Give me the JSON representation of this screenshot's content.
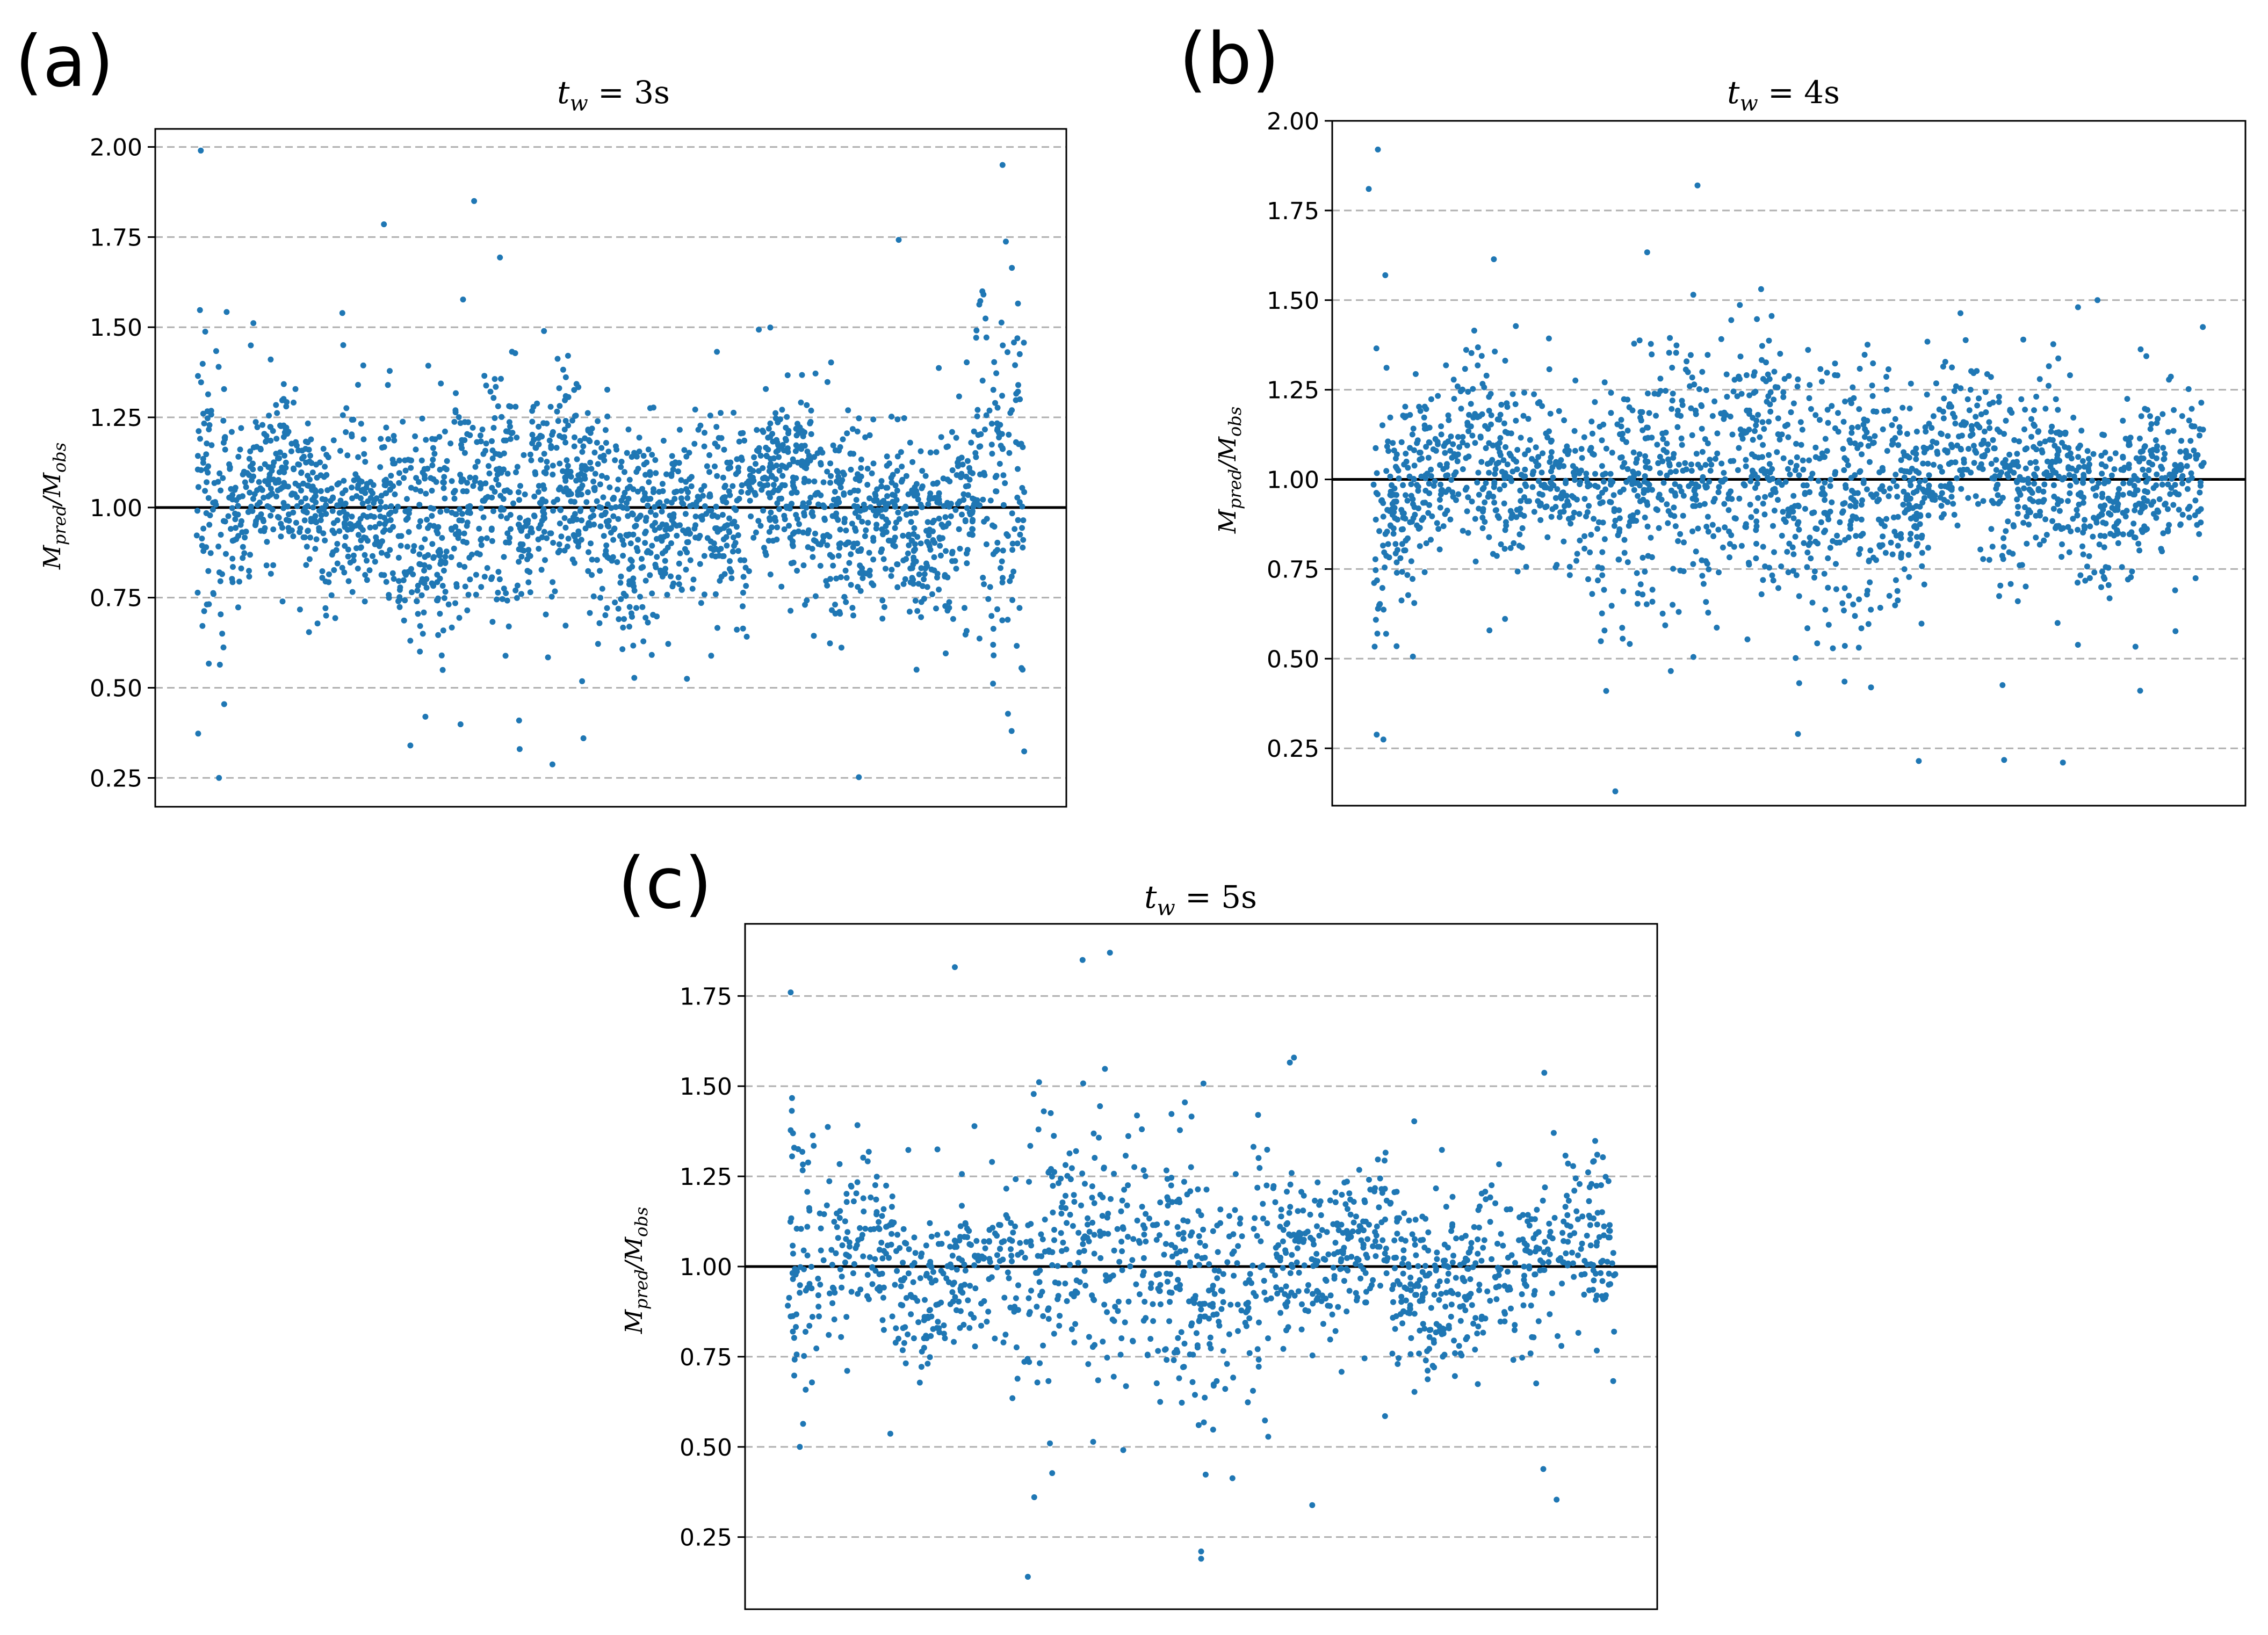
{
  "figure": {
    "series_color": "#1f77b4"
  },
  "chart_data": [
    {
      "type": "scatter",
      "panel_label": "(a)",
      "title": {
        "base": "t",
        "sub": "w",
        "rest": " = 3s"
      },
      "ylabel": {
        "base1": "M",
        "sub1": "pred",
        "mid": "/M",
        "sub2": "obs"
      },
      "xlabel": "",
      "ylim": [
        0.17,
        2.05
      ],
      "xlim": [
        0,
        1
      ],
      "yticks": [
        0.25,
        0.5,
        0.75,
        1.0,
        1.25,
        1.5,
        1.75,
        2.0
      ],
      "ytick_labels": [
        "0.25",
        "0.50",
        "0.75",
        "1.00",
        "1.25",
        "1.50",
        "1.75",
        "2.00"
      ],
      "grid": "horizontal dashed",
      "reference_line_y": 1.0,
      "n_points": 2400,
      "point_spread": {
        "center": 1.0,
        "min": 0.25,
        "max": 1.99
      },
      "notable_points": [
        {
          "x": 0.05,
          "y": 1.99
        },
        {
          "x": 0.07,
          "y": 0.25
        },
        {
          "x": 0.93,
          "y": 1.95
        },
        {
          "x": 0.28,
          "y": 0.34
        },
        {
          "x": 0.4,
          "y": 0.33
        },
        {
          "x": 0.47,
          "y": 0.36
        },
        {
          "x": 0.35,
          "y": 1.85
        },
        {
          "x": 0.94,
          "y": 0.38
        }
      ]
    },
    {
      "type": "scatter",
      "panel_label": "(b)",
      "title": {
        "base": "t",
        "sub": "w",
        "rest": " = 4s"
      },
      "ylabel": {
        "base1": "M",
        "sub1": "pred",
        "mid": "/M",
        "sub2": "obs"
      },
      "xlabel": "",
      "ylim": [
        0.09,
        2.0
      ],
      "xlim": [
        0,
        1
      ],
      "yticks": [
        0.25,
        0.5,
        0.75,
        1.0,
        1.25,
        1.5,
        1.75,
        2.0
      ],
      "ytick_labels": [
        "0.25",
        "0.50",
        "0.75",
        "1.00",
        "1.25",
        "1.50",
        "1.75",
        "2.00"
      ],
      "grid": "horizontal dashed",
      "reference_line_y": 1.0,
      "n_points": 2100,
      "point_spread": {
        "center": 1.0,
        "min": 0.13,
        "max": 1.92
      },
      "notable_points": [
        {
          "x": 0.05,
          "y": 1.92
        },
        {
          "x": 0.04,
          "y": 1.81
        },
        {
          "x": 0.31,
          "y": 0.13
        },
        {
          "x": 0.51,
          "y": 0.29
        },
        {
          "x": 0.4,
          "y": 1.82
        },
        {
          "x": 0.3,
          "y": 0.41
        },
        {
          "x": 0.59,
          "y": 0.42
        }
      ]
    },
    {
      "type": "scatter",
      "panel_label": "(c)",
      "title": {
        "base": "t",
        "sub": "w",
        "rest": " = 5s"
      },
      "ylabel": {
        "base1": "M",
        "sub1": "pred",
        "mid": "/M",
        "sub2": "obs"
      },
      "xlabel": "",
      "ylim": [
        0.05,
        1.95
      ],
      "xlim": [
        0,
        1
      ],
      "yticks": [
        0.25,
        0.5,
        0.75,
        1.0,
        1.25,
        1.5,
        1.75
      ],
      "ytick_labels": [
        "0.25",
        "0.50",
        "0.75",
        "1.00",
        "1.25",
        "1.50",
        "1.75"
      ],
      "grid": "horizontal dashed",
      "reference_line_y": 1.0,
      "n_points": 1500,
      "point_spread": {
        "center": 1.0,
        "min": 0.14,
        "max": 1.87
      },
      "notable_points": [
        {
          "x": 0.31,
          "y": 0.14
        },
        {
          "x": 0.5,
          "y": 0.19
        },
        {
          "x": 0.5,
          "y": 0.21
        },
        {
          "x": 0.4,
          "y": 1.87
        },
        {
          "x": 0.37,
          "y": 1.85
        },
        {
          "x": 0.23,
          "y": 1.83
        },
        {
          "x": 0.05,
          "y": 1.76
        },
        {
          "x": 0.06,
          "y": 0.5
        }
      ]
    }
  ]
}
